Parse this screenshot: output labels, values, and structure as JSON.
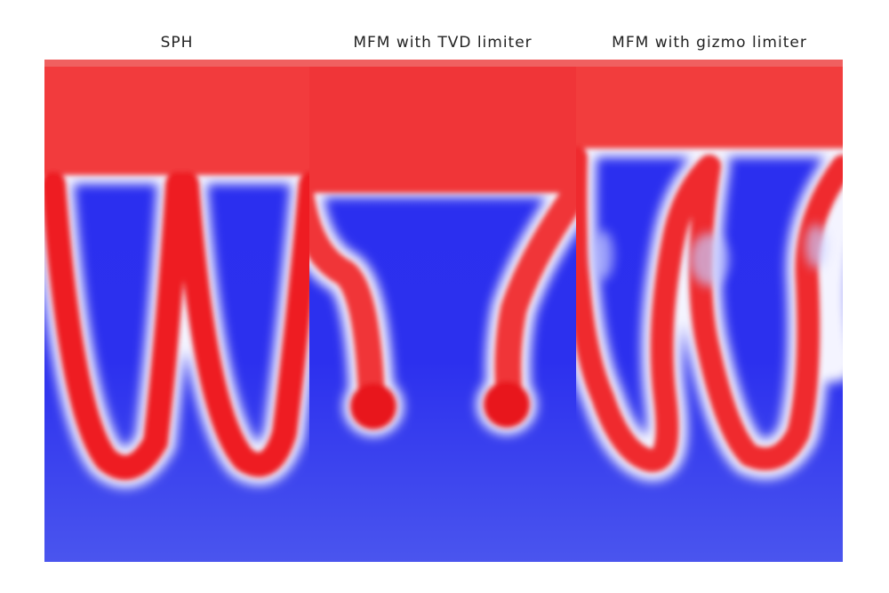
{
  "panels": [
    {
      "title": "SPH"
    },
    {
      "title": "MFM with TVD limiter"
    },
    {
      "title": "MFM with gizmo limiter"
    }
  ]
}
